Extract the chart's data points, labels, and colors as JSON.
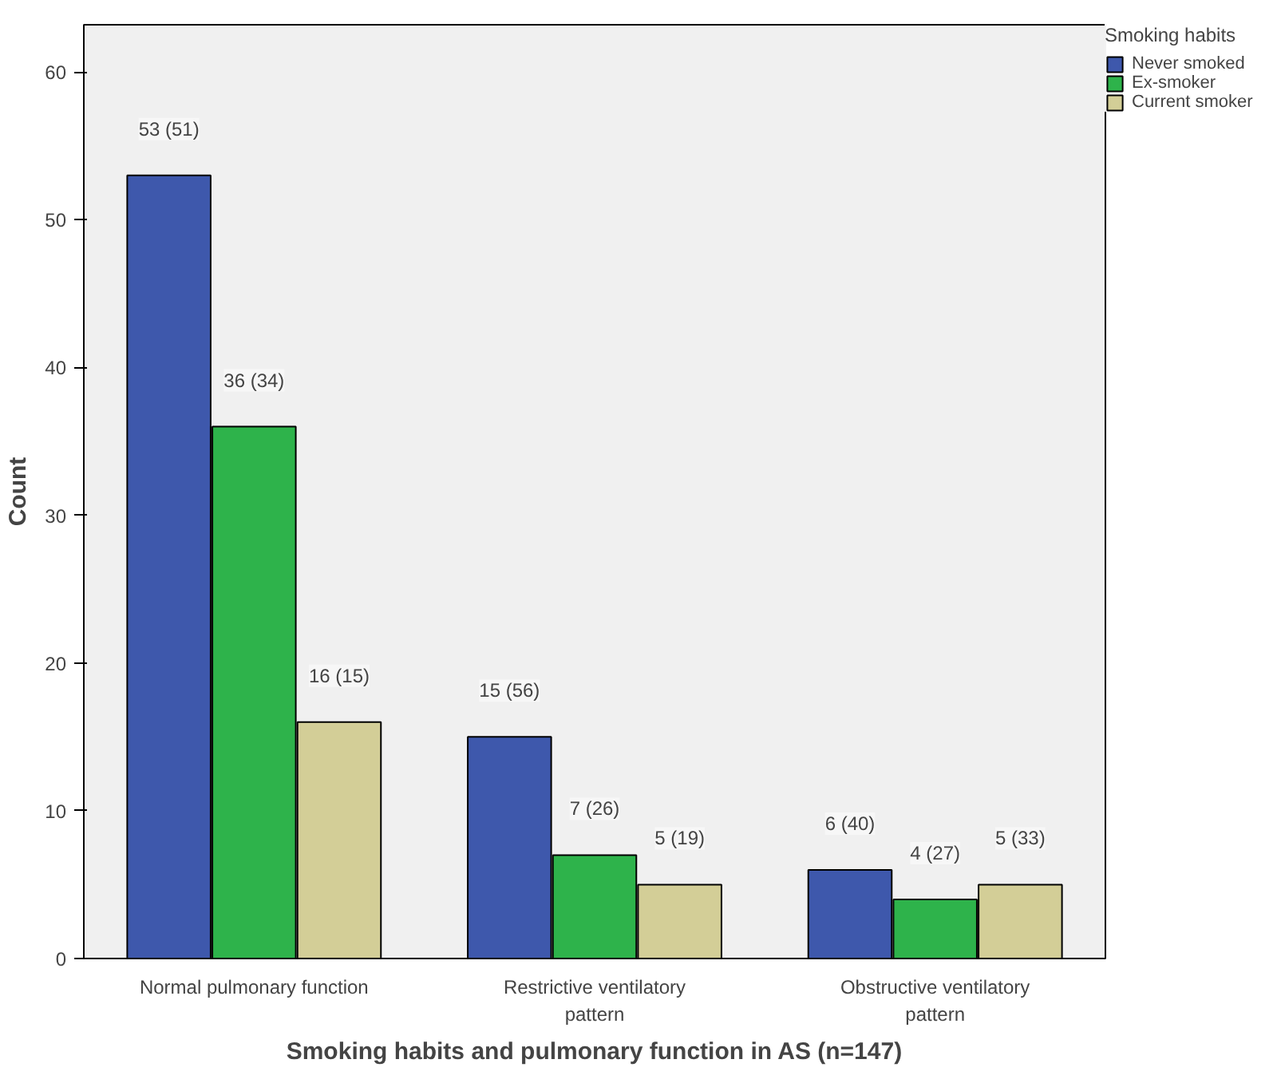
{
  "chart_data": {
    "type": "bar",
    "xlabel": "Smoking habits and pulmonary function in AS (n=147)",
    "ylabel": "Count",
    "legend_title": "Smoking habits",
    "categories": [
      "Normal pulmonary function",
      "Restrictive ventilatory pattern",
      "Obstructive ventilatory pattern"
    ],
    "series": [
      {
        "name": "Never smoked",
        "color": "#3e58ac",
        "values": [
          53,
          15,
          6
        ],
        "value_labels": [
          "53 (51)",
          "15 (56)",
          "6 (40)"
        ]
      },
      {
        "name": "Ex-smoker",
        "color": "#2eb34b",
        "values": [
          36,
          7,
          4
        ],
        "value_labels": [
          "36 (34)",
          "7 (26)",
          "4 (27)"
        ]
      },
      {
        "name": "Current smoker",
        "color": "#d3ce97",
        "values": [
          16,
          5,
          5
        ],
        "value_labels": [
          "16 (15)",
          "5 (19)",
          "5 (33)"
        ]
      }
    ],
    "ylim": [
      0,
      63.2
    ],
    "yticks": [
      0,
      10,
      20,
      30,
      40,
      50,
      60
    ],
    "grid": false,
    "legend": "top right"
  }
}
